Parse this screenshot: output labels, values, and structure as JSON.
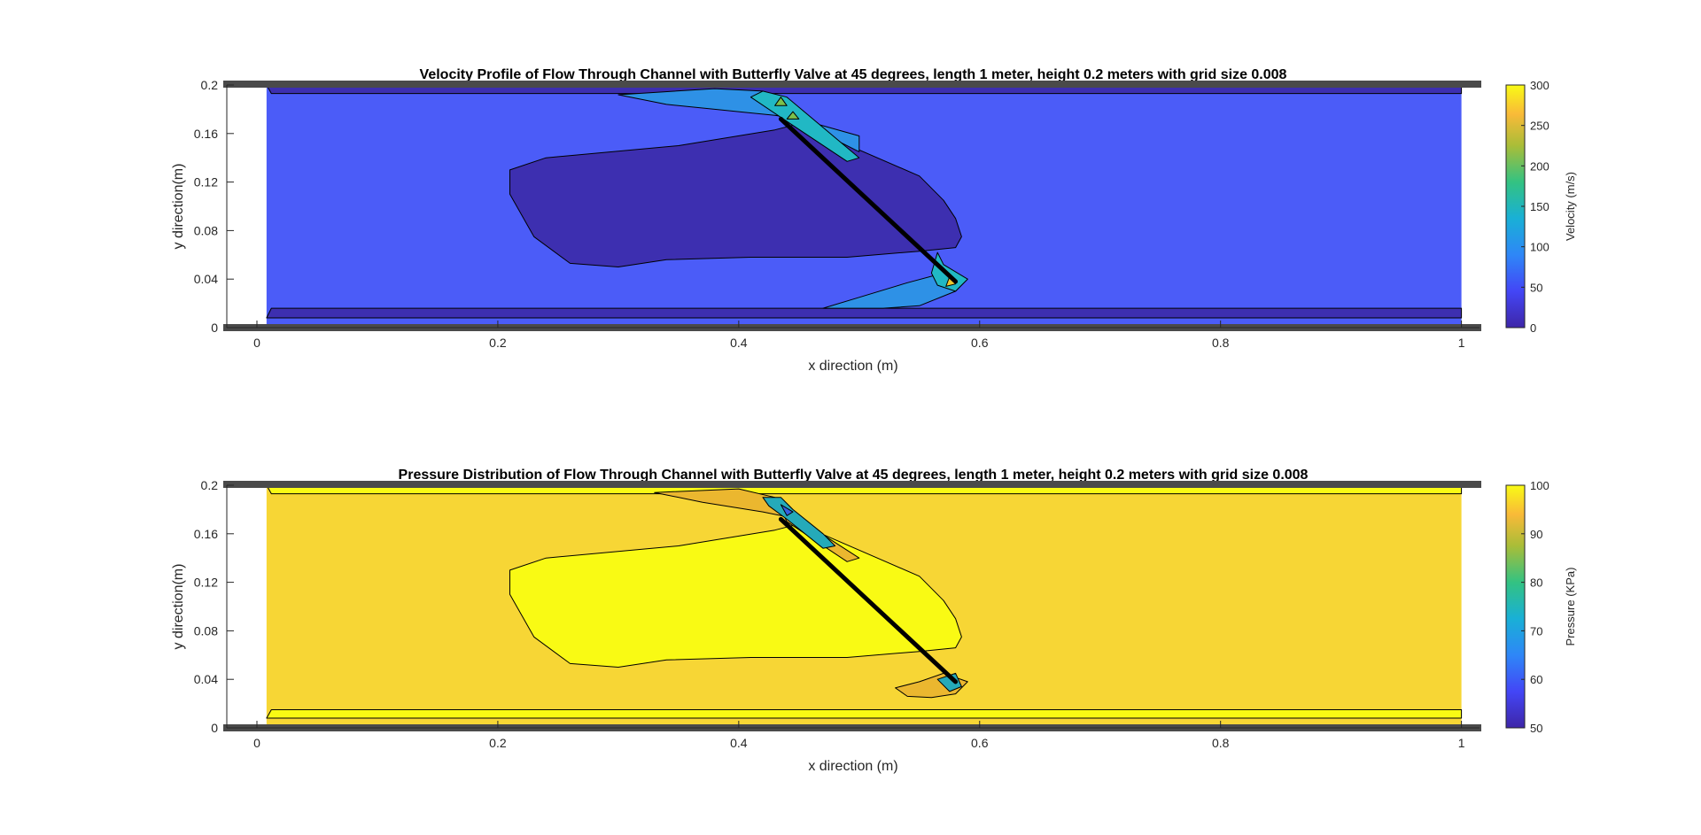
{
  "chart_data": [
    {
      "type": "contour",
      "title": "Velocity Profile of Flow Through Channel with Butterfly Valve at 45 degrees, length 1 meter, height 0.2 meters with grid size 0.008",
      "xlabel": "x direction (m)",
      "ylabel": "y direction(m)",
      "xlim": [
        -0.025,
        1.015
      ],
      "ylim": [
        0,
        0.2
      ],
      "xticks": [
        0,
        0.2,
        0.4,
        0.6,
        0.8,
        1
      ],
      "xtick_labels": [
        "0",
        "0.2",
        "0.4",
        "0.6",
        "0.8",
        "1"
      ],
      "yticks": [
        0,
        0.04,
        0.08,
        0.12,
        0.16,
        0.2
      ],
      "ytick_labels": [
        "0",
        "0.04",
        "0.08",
        "0.12",
        "0.16",
        "0.2"
      ],
      "colorbar": {
        "label": "Velocity (m/s)",
        "min": 0,
        "max": 300,
        "ticks": [
          0,
          50,
          100,
          150,
          200,
          250,
          300
        ],
        "tick_labels": [
          "0",
          "50",
          "100",
          "150",
          "200",
          "250",
          "300"
        ],
        "colormap": "parula"
      },
      "background_color": "#4b5cf8",
      "channel_x": [
        0.008,
        1.0
      ],
      "valve": {
        "x": [
          0.435,
          0.58
        ],
        "y": [
          0.172,
          0.038
        ]
      },
      "regions": [
        {
          "name": "low-velocity-wake",
          "color": "#3d2fb0",
          "points": [
            [
              0.21,
              0.13
            ],
            [
              0.24,
              0.14
            ],
            [
              0.35,
              0.15
            ],
            [
              0.43,
              0.163
            ],
            [
              0.45,
              0.168
            ],
            [
              0.55,
              0.125
            ],
            [
              0.57,
              0.105
            ],
            [
              0.58,
              0.09
            ],
            [
              0.585,
              0.075
            ],
            [
              0.58,
              0.066
            ],
            [
              0.55,
              0.063
            ],
            [
              0.49,
              0.058
            ],
            [
              0.45,
              0.058
            ],
            [
              0.41,
              0.058
            ],
            [
              0.34,
              0.056
            ],
            [
              0.3,
              0.05
            ],
            [
              0.26,
              0.053
            ],
            [
              0.23,
              0.075
            ],
            [
              0.21,
              0.11
            ]
          ]
        },
        {
          "name": "bottom-wall-layer",
          "color": "#3d2fb0",
          "points": [
            [
              0.008,
              0.008
            ],
            [
              0.012,
              0.016
            ],
            [
              1.0,
              0.016
            ],
            [
              1.0,
              0.008
            ]
          ]
        },
        {
          "name": "top-wall-layer",
          "color": "#3d2fb0",
          "points": [
            [
              0.008,
              0.2
            ],
            [
              0.012,
              0.193
            ],
            [
              1.0,
              0.193
            ],
            [
              1.0,
              0.2
            ]
          ]
        },
        {
          "name": "upper-jet",
          "color": "#2e91e6",
          "points": [
            [
              0.3,
              0.192
            ],
            [
              0.34,
              0.184
            ],
            [
              0.38,
              0.18
            ],
            [
              0.43,
              0.175
            ],
            [
              0.45,
              0.172
            ],
            [
              0.5,
              0.158
            ],
            [
              0.5,
              0.145
            ],
            [
              0.47,
              0.16
            ],
            [
              0.43,
              0.18
            ],
            [
              0.42,
              0.195
            ],
            [
              0.38,
              0.197
            ]
          ]
        },
        {
          "name": "lower-jet",
          "color": "#2e91e6",
          "points": [
            [
              0.47,
              0.016
            ],
            [
              0.5,
              0.025
            ],
            [
              0.54,
              0.037
            ],
            [
              0.57,
              0.045
            ],
            [
              0.59,
              0.04
            ],
            [
              0.58,
              0.03
            ],
            [
              0.55,
              0.018
            ],
            [
              0.52,
              0.016
            ]
          ]
        },
        {
          "name": "upper-valve-tip",
          "color": "#21b8c4",
          "points": [
            [
              0.41,
              0.19
            ],
            [
              0.42,
              0.195
            ],
            [
              0.44,
              0.19
            ],
            [
              0.5,
              0.14
            ],
            [
              0.49,
              0.137
            ],
            [
              0.44,
              0.17
            ]
          ]
        },
        {
          "name": "upper-hot-1",
          "color": "#7bc04c",
          "points": [
            [
              0.435,
              0.19
            ],
            [
              0.44,
              0.183
            ],
            [
              0.43,
              0.183
            ]
          ]
        },
        {
          "name": "upper-hot-2",
          "color": "#7bc04c",
          "points": [
            [
              0.445,
              0.178
            ],
            [
              0.45,
              0.172
            ],
            [
              0.44,
              0.172
            ]
          ]
        },
        {
          "name": "lower-valve-tip",
          "color": "#21b8c4",
          "points": [
            [
              0.565,
              0.062
            ],
            [
              0.57,
              0.052
            ],
            [
              0.59,
              0.04
            ],
            [
              0.58,
              0.03
            ],
            [
              0.565,
              0.035
            ],
            [
              0.56,
              0.045
            ]
          ]
        },
        {
          "name": "lower-hot",
          "color": "#eac72e",
          "points": [
            [
              0.575,
              0.042
            ],
            [
              0.58,
              0.036
            ],
            [
              0.572,
              0.034
            ]
          ]
        }
      ]
    },
    {
      "type": "contour",
      "title": "Pressure Distribution of Flow Through Channel with Butterfly Valve at 45 degrees, length 1 meter, height 0.2 meters with grid size 0.008",
      "xlabel": "x direction (m)",
      "ylabel": "y direction(m)",
      "xlim": [
        -0.025,
        1.015
      ],
      "ylim": [
        0,
        0.2
      ],
      "xticks": [
        0,
        0.2,
        0.4,
        0.6,
        0.8,
        1
      ],
      "xtick_labels": [
        "0",
        "0.2",
        "0.4",
        "0.6",
        "0.8",
        "1"
      ],
      "yticks": [
        0,
        0.04,
        0.08,
        0.12,
        0.16,
        0.2
      ],
      "ytick_labels": [
        "0",
        "0.04",
        "0.08",
        "0.12",
        "0.16",
        "0.2"
      ],
      "colorbar": {
        "label": "Pressure (KPa)",
        "min": 50,
        "max": 100,
        "ticks": [
          50,
          60,
          70,
          80,
          90,
          100
        ],
        "tick_labels": [
          "50",
          "60",
          "70",
          "80",
          "90",
          "100"
        ],
        "colormap": "parula"
      },
      "background_color": "#f7d635",
      "channel_x": [
        0.008,
        1.0
      ],
      "valve": {
        "x": [
          0.435,
          0.58
        ],
        "y": [
          0.172,
          0.038
        ]
      },
      "regions": [
        {
          "name": "bottom-wall-layer",
          "color": "#f9fa14",
          "points": [
            [
              0.008,
              0.008
            ],
            [
              0.012,
              0.015
            ],
            [
              1.0,
              0.015
            ],
            [
              1.0,
              0.008
            ]
          ]
        },
        {
          "name": "top-wall-layer",
          "color": "#f9fa14",
          "points": [
            [
              0.008,
              0.2
            ],
            [
              0.012,
              0.193
            ],
            [
              1.0,
              0.193
            ],
            [
              1.0,
              0.2
            ]
          ]
        },
        {
          "name": "high-pressure-wake",
          "color": "#f9fa14",
          "points": [
            [
              0.21,
              0.13
            ],
            [
              0.24,
              0.14
            ],
            [
              0.35,
              0.15
            ],
            [
              0.43,
              0.163
            ],
            [
              0.45,
              0.168
            ],
            [
              0.55,
              0.125
            ],
            [
              0.57,
              0.105
            ],
            [
              0.58,
              0.09
            ],
            [
              0.585,
              0.075
            ],
            [
              0.58,
              0.066
            ],
            [
              0.55,
              0.063
            ],
            [
              0.49,
              0.058
            ],
            [
              0.45,
              0.058
            ],
            [
              0.41,
              0.058
            ],
            [
              0.34,
              0.056
            ],
            [
              0.3,
              0.05
            ],
            [
              0.26,
              0.053
            ],
            [
              0.23,
              0.075
            ],
            [
              0.21,
              0.11
            ]
          ]
        },
        {
          "name": "upper-band",
          "color": "#ebb72f",
          "points": [
            [
              0.33,
              0.194
            ],
            [
              0.37,
              0.186
            ],
            [
              0.42,
              0.178
            ],
            [
              0.45,
              0.172
            ],
            [
              0.5,
              0.14
            ],
            [
              0.49,
              0.137
            ],
            [
              0.44,
              0.17
            ],
            [
              0.43,
              0.19
            ],
            [
              0.4,
              0.197
            ]
          ]
        },
        {
          "name": "lower-band",
          "color": "#ebb72f",
          "points": [
            [
              0.53,
              0.033
            ],
            [
              0.54,
              0.026
            ],
            [
              0.56,
              0.025
            ],
            [
              0.58,
              0.028
            ],
            [
              0.59,
              0.038
            ],
            [
              0.57,
              0.045
            ],
            [
              0.55,
              0.038
            ]
          ]
        },
        {
          "name": "upper-low-1",
          "color": "#25aab9",
          "points": [
            [
              0.42,
              0.19
            ],
            [
              0.435,
              0.19
            ],
            [
              0.445,
              0.18
            ],
            [
              0.47,
              0.16
            ],
            [
              0.48,
              0.15
            ],
            [
              0.47,
              0.148
            ],
            [
              0.44,
              0.172
            ],
            [
              0.425,
              0.183
            ]
          ]
        },
        {
          "name": "upper-low-2",
          "color": "#3560e0",
          "points": [
            [
              0.435,
              0.184
            ],
            [
              0.445,
              0.178
            ],
            [
              0.44,
              0.175
            ]
          ]
        },
        {
          "name": "lower-low",
          "color": "#25aab9",
          "points": [
            [
              0.565,
              0.04
            ],
            [
              0.575,
              0.03
            ],
            [
              0.585,
              0.034
            ],
            [
              0.58,
              0.045
            ]
          ]
        }
      ]
    }
  ]
}
